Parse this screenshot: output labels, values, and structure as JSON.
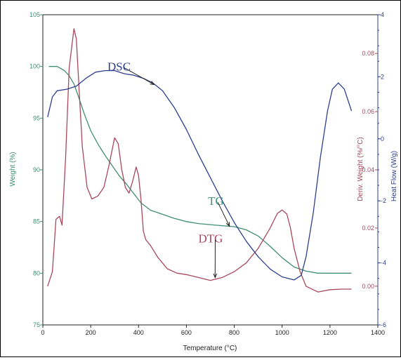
{
  "chart_data": {
    "type": "line",
    "title": "",
    "xlabel": "Temperature (°C)",
    "xlim": [
      0,
      1400
    ],
    "x_ticks": [
      "0",
      "200",
      "400",
      "600",
      "800",
      "1000",
      "1200",
      "1400"
    ],
    "grid": false,
    "axes": {
      "weight": {
        "label": "Weight (%)",
        "side": "left",
        "ylim": [
          75,
          105
        ],
        "ticks": [
          "75",
          "80",
          "85",
          "90",
          "95",
          "100",
          "105"
        ],
        "color": "#3f8f70"
      },
      "deriv": {
        "label": "Deriv. Weight (%/°C)",
        "side": "right-inner",
        "ylim": [
          -0.0133,
          0.0933
        ],
        "ticks": [
          "0.00",
          "0.02",
          "0.04",
          "0.06",
          "0.08"
        ],
        "color": "#a8485e"
      },
      "heatflow": {
        "label": "Heat Flow (W/g)",
        "side": "right-outer",
        "ylim": [
          -6,
          4
        ],
        "ticks": [
          "-6",
          "-4",
          "-2",
          "0",
          "2",
          "4"
        ],
        "color": "#2e3f8f"
      }
    },
    "series": [
      {
        "name": "TG",
        "axis": "weight",
        "color": "#3f8f70",
        "x": [
          25,
          60,
          90,
          110,
          130,
          150,
          175,
          200,
          230,
          260,
          290,
          320,
          350,
          380,
          410,
          450,
          500,
          550,
          600,
          650,
          700,
          750,
          800,
          850,
          900,
          950,
          1000,
          1050,
          1100,
          1150,
          1200,
          1250,
          1290
        ],
        "y": [
          100.0,
          100.0,
          99.6,
          99.1,
          98.3,
          97.0,
          95.3,
          93.8,
          92.5,
          91.4,
          90.4,
          89.4,
          88.6,
          87.7,
          86.8,
          86.1,
          85.7,
          85.3,
          85.0,
          84.8,
          84.7,
          84.6,
          84.5,
          84.2,
          83.6,
          82.6,
          81.5,
          80.6,
          80.2,
          80.0,
          80.0,
          80.0,
          80.0
        ]
      },
      {
        "name": "DTG",
        "axis": "deriv",
        "color": "#a8485e",
        "x": [
          20,
          40,
          55,
          70,
          80,
          95,
          110,
          130,
          140,
          150,
          165,
          185,
          205,
          230,
          255,
          275,
          300,
          315,
          330,
          345,
          360,
          375,
          390,
          400,
          410,
          420,
          430,
          450,
          480,
          520,
          560,
          600,
          650,
          700,
          750,
          800,
          850,
          900,
          950,
          980,
          1000,
          1020,
          1035,
          1050,
          1075,
          1100,
          1150,
          1200,
          1250,
          1290
        ],
        "y": [
          0.0,
          0.005,
          0.023,
          0.024,
          0.021,
          0.044,
          0.075,
          0.0885,
          0.085,
          0.07,
          0.048,
          0.034,
          0.03,
          0.031,
          0.034,
          0.041,
          0.051,
          0.049,
          0.04,
          0.034,
          0.032,
          0.036,
          0.041,
          0.038,
          0.03,
          0.019,
          0.016,
          0.014,
          0.01,
          0.006,
          0.0045,
          0.004,
          0.003,
          0.002,
          0.003,
          0.005,
          0.008,
          0.013,
          0.02,
          0.025,
          0.0262,
          0.0248,
          0.02,
          0.013,
          0.005,
          0.0,
          -0.002,
          -0.0012,
          -0.001,
          -0.001
        ]
      },
      {
        "name": "DSC",
        "axis": "heatflow",
        "color": "#2e3f8f",
        "x": [
          20,
          40,
          60,
          100,
          140,
          180,
          220,
          260,
          300,
          340,
          380,
          420,
          460,
          500,
          550,
          600,
          650,
          700,
          750,
          800,
          850,
          900,
          950,
          1000,
          1050,
          1080,
          1100,
          1130,
          1160,
          1190,
          1210,
          1235,
          1260,
          1290
        ],
        "y": [
          0.7,
          1.35,
          1.55,
          1.6,
          1.7,
          1.95,
          2.15,
          2.2,
          2.2,
          2.1,
          2.05,
          1.95,
          1.8,
          1.55,
          1.0,
          0.3,
          -0.5,
          -1.25,
          -2.0,
          -2.7,
          -3.3,
          -3.8,
          -4.2,
          -4.45,
          -4.55,
          -4.4,
          -3.8,
          -2.4,
          -0.6,
          0.9,
          1.6,
          1.8,
          1.6,
          0.9
        ]
      }
    ],
    "annotations": [
      {
        "text": "DSC",
        "color": "#2e3f8f",
        "at_x": 270,
        "at_y_axis": "heatflow",
        "at_y": 2.2,
        "arrow_to": [
          465,
          1.75
        ]
      },
      {
        "text": "TG",
        "color": "#3f8f70",
        "at_x": 690,
        "at_y_axis": "weight",
        "at_y": 86.6,
        "arrow_to": [
          780,
          84.55
        ]
      },
      {
        "text": "DTG",
        "color": "#a8485e",
        "at_x": 650,
        "at_y_axis": "deriv",
        "at_y": 0.015,
        "arrow_to": [
          720,
          0.003
        ]
      }
    ]
  }
}
